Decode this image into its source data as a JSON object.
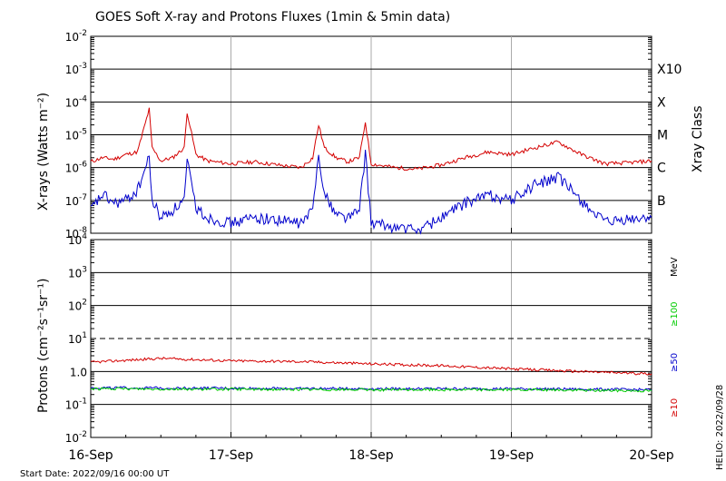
{
  "title": "GOES Soft X-ray and Protons Fluxes   (1min & 5min data)",
  "start_date_label": "Start Date: 2022/09/16 00:00 UT",
  "credit": "HELIO: 2022/09/28",
  "colors": {
    "xray_long": "#d40000",
    "xray_short": "#0000cc",
    "p10": "#d40000",
    "p50": "#0000cc",
    "p100": "#00cc00",
    "gridline": "#000000",
    "day_line": "#aaaaaa"
  },
  "chart_data": [
    {
      "type": "line",
      "panel": "xrays",
      "ylabel": "X-rays (Watts m⁻²)",
      "yscale": "log",
      "ylim": [
        1e-08,
        0.01
      ],
      "y_ticks": [
        {
          "base": "10",
          "exp": "-2",
          "value": 0.01
        },
        {
          "base": "10",
          "exp": "-3",
          "value": 0.001
        },
        {
          "base": "10",
          "exp": "-4",
          "value": 0.0001
        },
        {
          "base": "10",
          "exp": "-5",
          "value": 1e-05
        },
        {
          "base": "10",
          "exp": "-6",
          "value": 1e-06
        },
        {
          "base": "10",
          "exp": "-7",
          "value": 1e-07
        },
        {
          "base": "10",
          "exp": "-8",
          "value": 1e-08
        }
      ],
      "right_label": "Xray Class",
      "classes": [
        {
          "label": "X10",
          "value": 0.001
        },
        {
          "label": "X",
          "value": 0.0001
        },
        {
          "label": "M",
          "value": 1e-05
        },
        {
          "label": "C",
          "value": 1e-06
        },
        {
          "label": "B",
          "value": 1e-07
        }
      ],
      "series": [
        {
          "key": "long",
          "x": [
            "2022-09-16 00:00",
            "2022-09-16 02:00",
            "2022-09-16 04:00",
            "2022-09-16 06:00",
            "2022-09-16 08:00",
            "2022-09-16 10:00",
            "2022-09-16 10:30",
            "2022-09-16 12:00",
            "2022-09-16 14:00",
            "2022-09-16 16:00",
            "2022-09-16 16:30",
            "2022-09-16 18:00",
            "2022-09-16 20:00",
            "2022-09-17 00:00",
            "2022-09-17 04:00",
            "2022-09-17 08:00",
            "2022-09-17 12:00",
            "2022-09-17 14:00",
            "2022-09-17 15:00",
            "2022-09-17 16:00",
            "2022-09-17 18:00",
            "2022-09-17 20:00",
            "2022-09-17 22:00",
            "2022-09-17 23:00",
            "2022-09-18 00:00",
            "2022-09-18 04:00",
            "2022-09-18 08:00",
            "2022-09-18 12:00",
            "2022-09-18 16:00",
            "2022-09-18 20:00",
            "2022-09-19 00:00",
            "2022-09-19 04:00",
            "2022-09-19 08:00",
            "2022-09-19 12:00",
            "2022-09-19 16:00",
            "2022-09-19 20:00",
            "2022-09-20 00:00"
          ],
          "y": [
            1.5e-06,
            2e-06,
            1.8e-06,
            2.5e-06,
            3e-06,
            6e-05,
            4e-06,
            1.6e-06,
            2e-06,
            4e-06,
            5e-05,
            2.5e-06,
            1.6e-06,
            1.3e-06,
            1.5e-06,
            1.2e-06,
            1e-06,
            2e-06,
            2e-05,
            4e-06,
            2e-06,
            1.5e-06,
            2e-06,
            2.5e-05,
            1.3e-06,
            1e-06,
            9e-07,
            1.2e-06,
            2e-06,
            3e-06,
            2.5e-06,
            4e-06,
            6e-06,
            2.5e-06,
            1.3e-06,
            1.4e-06,
            1.6e-06
          ]
        },
        {
          "key": "short",
          "x": [
            "2022-09-16 00:00",
            "2022-09-16 02:00",
            "2022-09-16 04:00",
            "2022-09-16 06:00",
            "2022-09-16 08:00",
            "2022-09-16 10:00",
            "2022-09-16 10:30",
            "2022-09-16 12:00",
            "2022-09-16 14:00",
            "2022-09-16 16:00",
            "2022-09-16 16:30",
            "2022-09-16 18:00",
            "2022-09-16 20:00",
            "2022-09-17 00:00",
            "2022-09-17 04:00",
            "2022-09-17 08:00",
            "2022-09-17 12:00",
            "2022-09-17 14:00",
            "2022-09-17 15:00",
            "2022-09-17 16:00",
            "2022-09-17 18:00",
            "2022-09-17 20:00",
            "2022-09-17 22:00",
            "2022-09-17 23:00",
            "2022-09-18 00:00",
            "2022-09-18 04:00",
            "2022-09-18 08:00",
            "2022-09-18 12:00",
            "2022-09-18 16:00",
            "2022-09-18 20:00",
            "2022-09-19 00:00",
            "2022-09-19 04:00",
            "2022-09-19 08:00",
            "2022-09-19 12:00",
            "2022-09-19 16:00",
            "2022-09-19 20:00",
            "2022-09-20 00:00"
          ],
          "y": [
            5e-08,
            1.5e-07,
            8e-08,
            1e-07,
            2e-07,
            2e-06,
            1e-07,
            3e-08,
            5e-08,
            1e-07,
            1.5e-06,
            6e-08,
            3e-08,
            2e-08,
            3e-08,
            2.5e-08,
            2e-08,
            5e-08,
            3e-06,
            1.5e-07,
            4e-08,
            3e-08,
            5e-08,
            3e-06,
            2e-08,
            1.5e-08,
            1.2e-08,
            3e-08,
            8e-08,
            1.5e-07,
            1e-07,
            3e-07,
            5e-07,
            1e-07,
            2e-08,
            2.5e-08,
            3e-08
          ]
        }
      ]
    },
    {
      "type": "line",
      "panel": "protons",
      "ylabel": "Protons (cm⁻²s⁻¹sr⁻¹)",
      "yscale": "log",
      "ylim": [
        0.01,
        10000
      ],
      "y_ticks": [
        {
          "base": "10",
          "exp": "4",
          "value": 10000
        },
        {
          "base": "10",
          "exp": "3",
          "value": 1000
        },
        {
          "base": "10",
          "exp": "2",
          "value": 100
        },
        {
          "base": "10",
          "exp": "1",
          "value": 10
        },
        {
          "base": "1.0",
          "exp": "",
          "value": 1
        },
        {
          "base": "10",
          "exp": "-1",
          "value": 0.1
        },
        {
          "base": "10",
          "exp": "-2",
          "value": 0.01
        }
      ],
      "threshold": 10,
      "unit_label": "MeV",
      "series": [
        {
          "key": "p10",
          "name": "≥10",
          "x": [
            "2022-09-16 00:00",
            "2022-09-16 12:00",
            "2022-09-17 00:00",
            "2022-09-17 12:00",
            "2022-09-18 00:00",
            "2022-09-18 12:00",
            "2022-09-19 00:00",
            "2022-09-19 12:00",
            "2022-09-20 00:00"
          ],
          "y": [
            1.9,
            2.5,
            2.1,
            2.0,
            1.7,
            1.5,
            1.2,
            1.0,
            0.85
          ]
        },
        {
          "key": "p50",
          "name": "≥50",
          "x": [
            "2022-09-16 00:00",
            "2022-09-17 00:00",
            "2022-09-18 00:00",
            "2022-09-19 00:00",
            "2022-09-20 00:00"
          ],
          "y": [
            0.32,
            0.31,
            0.3,
            0.3,
            0.28
          ]
        },
        {
          "key": "p100",
          "name": "≥100",
          "x": [
            "2022-09-16 00:00",
            "2022-09-17 00:00",
            "2022-09-18 00:00",
            "2022-09-19 00:00",
            "2022-09-20 00:00"
          ],
          "y": [
            0.3,
            0.29,
            0.28,
            0.28,
            0.26
          ]
        }
      ]
    }
  ],
  "x_ticks": [
    "16-Sep",
    "17-Sep",
    "18-Sep",
    "19-Sep",
    "20-Sep"
  ],
  "xlim": [
    "2022-09-16 00:00",
    "2022-09-20 00:00"
  ]
}
